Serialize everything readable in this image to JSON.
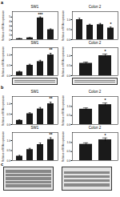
{
  "chart_data": [
    {
      "type": "bar",
      "title": "SW1",
      "categories": [
        null,
        null,
        null,
        null
      ],
      "values": [
        0.22,
        0.4,
        4.8,
        2.2
      ],
      "errors": [
        0.04,
        0.06,
        0.22,
        0.18
      ],
      "color": "#1a1a1a",
      "ylabel": "Relative mRNA expression",
      "ylim": [
        0,
        6.2
      ],
      "yticks": [
        0,
        1,
        2,
        3,
        4,
        5
      ],
      "tick_labels": "y",
      "grid": false,
      "annotations": [
        {
          "text": "***",
          "x": 2,
          "y": 5.2
        }
      ]
    },
    {
      "type": "bar",
      "title": "Colon 2",
      "categories": [
        null,
        null,
        null,
        null
      ],
      "values": [
        1.0,
        0.72,
        0.75,
        0.58
      ],
      "errors": [
        0.07,
        0.05,
        0.06,
        0.05
      ],
      "color": "#1a1a1a",
      "ylabel": "Relative mRNA expression",
      "ylim": [
        0,
        1.4
      ],
      "yticks": [
        {
          "value": 0,
          "label": "0.0"
        },
        0.5,
        {
          "value": 1,
          "label": "1.0"
        }
      ],
      "tick_labels": "y",
      "grid": false,
      "annotations": [
        {
          "text": "*",
          "x": 3,
          "y": 0.72
        }
      ]
    },
    {
      "type": "bar",
      "title": "SW1",
      "categories": [
        null,
        null,
        null,
        null
      ],
      "values": [
        0.18,
        0.5,
        0.68,
        1.0
      ],
      "errors": [
        0.03,
        0.05,
        0.06,
        0.08
      ],
      "color": "#1a1a1a",
      "ylabel": "Relative mRNA expression",
      "ylim": [
        0,
        1.35
      ],
      "yticks": [
        {
          "value": 0,
          "label": "0.0"
        },
        0.5,
        {
          "value": 1,
          "label": "1.0"
        }
      ],
      "tick_labels": "y",
      "grid": false,
      "annotations": [
        {
          "text": "**",
          "x": 3,
          "y": 1.16
        }
      ]
    },
    {
      "type": "bar",
      "title": "Colon 2",
      "categories": [
        null,
        null
      ],
      "values": [
        0.62,
        1.0
      ],
      "errors": [
        0.06,
        0.08
      ],
      "color": "#1a1a1a",
      "ylabel": "Relative mRNA expression",
      "ylim": [
        0,
        1.4
      ],
      "yticks": [
        {
          "value": 0,
          "label": "0.0"
        },
        0.5,
        {
          "value": 1,
          "label": "1.0"
        }
      ],
      "tick_labels": "y",
      "grid": false,
      "annotations": [
        {
          "text": "*",
          "x": 1,
          "y": 1.16
        }
      ]
    },
    {
      "type": "bar",
      "title": "SW1",
      "categories": [
        null,
        null,
        null,
        null
      ],
      "values": [
        0.2,
        0.52,
        0.75,
        1.0
      ],
      "errors": [
        0.03,
        0.05,
        0.07,
        0.08
      ],
      "color": "#1a1a1a",
      "ylabel": "Relative mRNA expression",
      "ylim": [
        0,
        1.35
      ],
      "yticks": [
        {
          "value": 0,
          "label": "0.0"
        },
        0.5,
        {
          "value": 1,
          "label": "1.0"
        }
      ],
      "tick_labels": "y",
      "grid": false,
      "annotations": [
        {
          "text": "**",
          "x": 3,
          "y": 1.16
        }
      ]
    },
    {
      "type": "bar",
      "title": "Colon 2",
      "categories": [
        null,
        null
      ],
      "values": [
        0.85,
        1.1
      ],
      "errors": [
        0.07,
        0.09
      ],
      "color": "#1a1a1a",
      "ylabel": "Relative mRNA expression",
      "ylim": [
        0,
        1.55
      ],
      "yticks": [
        {
          "value": 0,
          "label": "0.0"
        },
        0.5,
        {
          "value": 1,
          "label": "1.0"
        }
      ],
      "tick_labels": "y",
      "grid": false,
      "annotations": [
        {
          "text": "*",
          "x": 1,
          "y": 1.26
        }
      ]
    },
    {
      "type": "bar",
      "title": "SW1",
      "categories": [
        null,
        null,
        null,
        null
      ],
      "values": [
        0.22,
        0.55,
        0.8,
        1.05
      ],
      "errors": [
        0.04,
        0.06,
        0.08,
        0.09
      ],
      "color": "#1a1a1a",
      "ylabel": "Relative mRNA expression",
      "ylim": [
        0,
        1.4
      ],
      "yticks": [
        {
          "value": 0,
          "label": "0.0"
        },
        0.5,
        {
          "value": 1,
          "label": "1.0"
        }
      ],
      "tick_labels": "y",
      "grid": false,
      "annotations": [
        {
          "text": "**",
          "x": 3,
          "y": 1.22
        }
      ]
    },
    {
      "type": "bar",
      "title": "Colon 2",
      "categories": [
        null,
        null
      ],
      "values": [
        0.9,
        1.15
      ],
      "errors": [
        0.08,
        0.1
      ],
      "color": "#1a1a1a",
      "ylabel": "Relative mRNA expression",
      "ylim": [
        0,
        1.55
      ],
      "yticks": [
        {
          "value": 0,
          "label": "0.0"
        },
        0.5,
        {
          "value": 1,
          "label": "1.0"
        }
      ],
      "tick_labels": "y",
      "grid": false,
      "annotations": [
        {
          "text": "*",
          "x": 1,
          "y": 1.32
        }
      ]
    }
  ],
  "annotations": [
    {
      "text": "a"
    },
    {
      "text": "b"
    },
    {
      "text": "c"
    }
  ]
}
